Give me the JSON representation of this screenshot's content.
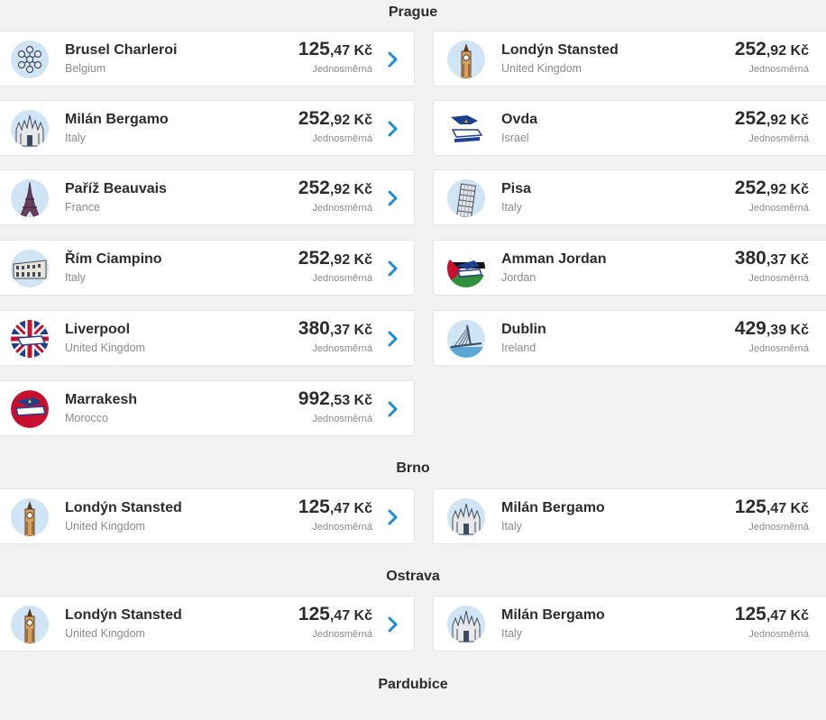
{
  "sections": [
    {
      "title": "Prague",
      "routes": [
        {
          "name": "Brusel Charleroi",
          "country": "Belgium",
          "price_int": "125",
          "price_dec": ",47",
          "currency": " Kč",
          "trip": "Jednosměrná",
          "icon": "atomium-icon"
        },
        {
          "name": "Londýn Stansted",
          "country": "United Kingdom",
          "price_int": "252",
          "price_dec": ",92",
          "currency": " Kč",
          "trip": "Jednosměrná",
          "icon": "big-ben-icon"
        },
        {
          "name": "Milán Bergamo",
          "country": "Italy",
          "price_int": "252",
          "price_dec": ",92",
          "currency": " Kč",
          "trip": "Jednosměrná",
          "icon": "milan-cathedral-icon"
        },
        {
          "name": "Ovda",
          "country": "Israel",
          "price_int": "252",
          "price_dec": ",92",
          "currency": " Kč",
          "trip": "Jednosměrná",
          "icon": "plane-tail-israel-icon"
        },
        {
          "name": "Paříž Beauvais",
          "country": "France",
          "price_int": "252",
          "price_dec": ",92",
          "currency": " Kč",
          "trip": "Jednosměrná",
          "icon": "eiffel-tower-icon"
        },
        {
          "name": "Pisa",
          "country": "Italy",
          "price_int": "252",
          "price_dec": ",92",
          "currency": " Kč",
          "trip": "Jednosměrná",
          "icon": "leaning-tower-icon"
        },
        {
          "name": "Řím Ciampino",
          "country": "Italy",
          "price_int": "252",
          "price_dec": ",92",
          "currency": " Kč",
          "trip": "Jednosměrná",
          "icon": "colosseum-icon"
        },
        {
          "name": "Amman Jordan",
          "country": "Jordan",
          "price_int": "380",
          "price_dec": ",37",
          "currency": " Kč",
          "trip": "Jednosměrná",
          "icon": "plane-tail-jordan-icon"
        },
        {
          "name": "Liverpool",
          "country": "United Kingdom",
          "price_int": "380",
          "price_dec": ",37",
          "currency": " Kč",
          "trip": "Jednosměrná",
          "icon": "plane-tail-uk-icon"
        },
        {
          "name": "Dublin",
          "country": "Ireland",
          "price_int": "429",
          "price_dec": ",39",
          "currency": " Kč",
          "trip": "Jednosměrná",
          "icon": "bridge-icon"
        },
        {
          "name": "Marrakesh",
          "country": "Morocco",
          "price_int": "992",
          "price_dec": ",53",
          "currency": " Kč",
          "trip": "Jednosměrná",
          "icon": "plane-tail-morocco-icon"
        }
      ]
    },
    {
      "title": "Brno",
      "routes": [
        {
          "name": "Londýn Stansted",
          "country": "United Kingdom",
          "price_int": "125",
          "price_dec": ",47",
          "currency": " Kč",
          "trip": "Jednosměrná",
          "icon": "big-ben-icon"
        },
        {
          "name": "Milán Bergamo",
          "country": "Italy",
          "price_int": "125",
          "price_dec": ",47",
          "currency": " Kč",
          "trip": "Jednosměrná",
          "icon": "milan-cathedral-icon"
        }
      ]
    },
    {
      "title": "Ostrava",
      "routes": [
        {
          "name": "Londýn Stansted",
          "country": "United Kingdom",
          "price_int": "125",
          "price_dec": ",47",
          "currency": " Kč",
          "trip": "Jednosměrná",
          "icon": "big-ben-icon"
        },
        {
          "name": "Milán Bergamo",
          "country": "Italy",
          "price_int": "125",
          "price_dec": ",47",
          "currency": " Kč",
          "trip": "Jednosměrná",
          "icon": "milan-cathedral-icon"
        }
      ]
    },
    {
      "title": "Pardubice",
      "routes": []
    }
  ],
  "colors": {
    "accent": "#1a8fd8",
    "background": "#f2f2f2",
    "card": "#ffffff"
  }
}
